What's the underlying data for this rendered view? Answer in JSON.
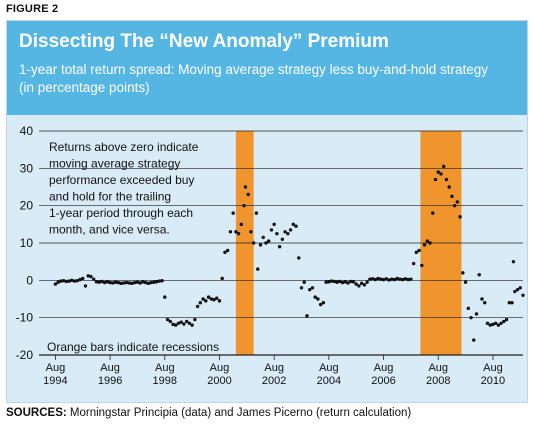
{
  "figure_label": "FIGURE 2",
  "sources_label": "SOURCES:",
  "sources_text": " Morningstar Principia (data) and James Picerno (return calculation)",
  "colors": {
    "header": "#55b6e4",
    "panel": "#d9ebf6",
    "recession": "#f0952e",
    "dot": "#111111"
  },
  "chart_data": {
    "type": "scatter",
    "title": "Dissecting The “New Anomaly” Premium",
    "subtitle_lines": [
      "1-year total return spread: Moving average strategy less buy-and-hold strategy",
      "(in percentage points)"
    ],
    "ylim": [
      -20,
      40
    ],
    "yticks": [
      40,
      30,
      20,
      10,
      0,
      -10,
      -20
    ],
    "xlim": [
      1994.0,
      2011.7
    ],
    "xticks": [
      {
        "x": 1994.6,
        "label": [
          "Aug",
          "1994"
        ]
      },
      {
        "x": 1996.6,
        "label": [
          "Aug",
          "1996"
        ]
      },
      {
        "x": 1998.6,
        "label": [
          "Aug",
          "1998"
        ]
      },
      {
        "x": 2000.6,
        "label": [
          "Aug",
          "2000"
        ]
      },
      {
        "x": 2002.6,
        "label": [
          "Aug",
          "2002"
        ]
      },
      {
        "x": 2004.6,
        "label": [
          "Aug",
          "2004"
        ]
      },
      {
        "x": 2006.6,
        "label": [
          "Aug",
          "2006"
        ]
      },
      {
        "x": 2008.6,
        "label": [
          "Aug",
          "2008"
        ]
      },
      {
        "x": 2010.6,
        "label": [
          "Aug",
          "2010"
        ]
      }
    ],
    "recessions": [
      {
        "start": 2001.2,
        "end": 2001.85
      },
      {
        "start": 2007.95,
        "end": 2009.45
      }
    ],
    "annotations": [
      {
        "lines": [
          "Returns above zero indicate",
          "moving average strategy",
          "performance exceeded buy",
          "and hold for the trailing",
          "1-year period through each",
          "month, and vice versa."
        ],
        "anchor": "upper-left"
      },
      {
        "lines": [
          "Orange bars indicate recessions"
        ],
        "anchor": "lower-left"
      }
    ],
    "series": [
      {
        "values": [
          [
            1994.6,
            -1.0
          ],
          [
            1994.7,
            -0.5
          ],
          [
            1994.8,
            -0.2
          ],
          [
            1994.9,
            -0.1
          ],
          [
            1995.0,
            -0.3
          ],
          [
            1995.1,
            -0.2
          ],
          [
            1995.2,
            0.0
          ],
          [
            1995.3,
            -0.2
          ],
          [
            1995.4,
            -0.1
          ],
          [
            1995.5,
            0.2
          ],
          [
            1995.6,
            0.5
          ],
          [
            1995.7,
            -1.5
          ],
          [
            1995.8,
            1.2
          ],
          [
            1995.9,
            1.0
          ],
          [
            1996.0,
            0.3
          ],
          [
            1996.1,
            -0.4
          ],
          [
            1996.2,
            -0.5
          ],
          [
            1996.3,
            -0.3
          ],
          [
            1996.4,
            -0.6
          ],
          [
            1996.5,
            -0.4
          ],
          [
            1996.6,
            -0.6
          ],
          [
            1996.7,
            -0.7
          ],
          [
            1996.8,
            -0.5
          ],
          [
            1996.9,
            -0.6
          ],
          [
            1997.0,
            -0.8
          ],
          [
            1997.1,
            -0.7
          ],
          [
            1997.2,
            -0.6
          ],
          [
            1997.3,
            -0.7
          ],
          [
            1997.4,
            -0.8
          ],
          [
            1997.5,
            -0.6
          ],
          [
            1997.6,
            -0.5
          ],
          [
            1997.7,
            -0.7
          ],
          [
            1997.8,
            -0.4
          ],
          [
            1997.9,
            -0.6
          ],
          [
            1998.0,
            -0.8
          ],
          [
            1998.1,
            -0.6
          ],
          [
            1998.2,
            -0.5
          ],
          [
            1998.3,
            -0.4
          ],
          [
            1998.4,
            -0.2
          ],
          [
            1998.5,
            -0.1
          ],
          [
            1998.6,
            -4.5
          ],
          [
            1998.7,
            -10.5
          ],
          [
            1998.8,
            -11.0
          ],
          [
            1998.9,
            -11.8
          ],
          [
            1999.0,
            -12.0
          ],
          [
            1999.1,
            -11.5
          ],
          [
            1999.2,
            -11.2
          ],
          [
            1999.3,
            -11.7
          ],
          [
            1999.4,
            -11.0
          ],
          [
            1999.5,
            -11.5
          ],
          [
            1999.6,
            -12.0
          ],
          [
            1999.7,
            -10.5
          ],
          [
            1999.8,
            -7.0
          ],
          [
            1999.9,
            -6.0
          ],
          [
            2000.0,
            -5.0
          ],
          [
            2000.1,
            -5.5
          ],
          [
            2000.2,
            -4.5
          ],
          [
            2000.3,
            -5.0
          ],
          [
            2000.4,
            -5.2
          ],
          [
            2000.5,
            -4.8
          ],
          [
            2000.6,
            -5.5
          ],
          [
            2000.7,
            0.5
          ],
          [
            2000.8,
            7.5
          ],
          [
            2000.9,
            8.0
          ],
          [
            2001.0,
            13.0
          ],
          [
            2001.1,
            18.0
          ],
          [
            2001.2,
            13.0
          ],
          [
            2001.3,
            12.5
          ],
          [
            2001.4,
            15.0
          ],
          [
            2001.5,
            20.0
          ],
          [
            2001.55,
            25.0
          ],
          [
            2001.65,
            23.0
          ],
          [
            2001.75,
            13.0
          ],
          [
            2001.85,
            10.0
          ],
          [
            2001.95,
            18.0
          ],
          [
            2002.0,
            3.0
          ],
          [
            2002.1,
            9.5
          ],
          [
            2002.2,
            11.5
          ],
          [
            2002.3,
            10.0
          ],
          [
            2002.4,
            10.5
          ],
          [
            2002.5,
            13.5
          ],
          [
            2002.6,
            15.0
          ],
          [
            2002.7,
            12.5
          ],
          [
            2002.8,
            9.0
          ],
          [
            2002.9,
            11.0
          ],
          [
            2003.0,
            13.0
          ],
          [
            2003.1,
            12.5
          ],
          [
            2003.2,
            13.5
          ],
          [
            2003.3,
            15.0
          ],
          [
            2003.4,
            14.5
          ],
          [
            2003.5,
            6.0
          ],
          [
            2003.6,
            -2.0
          ],
          [
            2003.7,
            -0.5
          ],
          [
            2003.8,
            -9.5
          ],
          [
            2003.9,
            -2.5
          ],
          [
            2004.0,
            -2.0
          ],
          [
            2004.1,
            -4.5
          ],
          [
            2004.2,
            -5.0
          ],
          [
            2004.3,
            -6.5
          ],
          [
            2004.4,
            -6.0
          ],
          [
            2004.5,
            -0.5
          ],
          [
            2004.6,
            -0.4
          ],
          [
            2004.7,
            -0.2
          ],
          [
            2004.8,
            -0.3
          ],
          [
            2004.9,
            -0.5
          ],
          [
            2005.0,
            -0.3
          ],
          [
            2005.1,
            -0.6
          ],
          [
            2005.2,
            -0.4
          ],
          [
            2005.3,
            -0.7
          ],
          [
            2005.4,
            -0.3
          ],
          [
            2005.5,
            -0.4
          ],
          [
            2005.6,
            -1.0
          ],
          [
            2005.7,
            -1.5
          ],
          [
            2005.8,
            -0.8
          ],
          [
            2005.9,
            -1.2
          ],
          [
            2006.0,
            -0.5
          ],
          [
            2006.1,
            0.3
          ],
          [
            2006.2,
            0.4
          ],
          [
            2006.3,
            0.2
          ],
          [
            2006.4,
            0.5
          ],
          [
            2006.5,
            0.3
          ],
          [
            2006.6,
            0.2
          ],
          [
            2006.7,
            0.4
          ],
          [
            2006.8,
            0.1
          ],
          [
            2006.9,
            0.3
          ],
          [
            2007.0,
            0.2
          ],
          [
            2007.1,
            0.5
          ],
          [
            2007.2,
            0.3
          ],
          [
            2007.3,
            0.2
          ],
          [
            2007.4,
            0.4
          ],
          [
            2007.5,
            0.2
          ],
          [
            2007.6,
            0.3
          ],
          [
            2007.7,
            4.5
          ],
          [
            2007.8,
            7.5
          ],
          [
            2007.9,
            8.0
          ],
          [
            2008.0,
            4.0
          ],
          [
            2008.1,
            9.5
          ],
          [
            2008.2,
            10.5
          ],
          [
            2008.3,
            10.0
          ],
          [
            2008.4,
            18.0
          ],
          [
            2008.5,
            27.0
          ],
          [
            2008.6,
            29.0
          ],
          [
            2008.7,
            28.5
          ],
          [
            2008.8,
            30.5
          ],
          [
            2008.9,
            27.0
          ],
          [
            2009.0,
            25.0
          ],
          [
            2009.1,
            22.5
          ],
          [
            2009.2,
            20.0
          ],
          [
            2009.3,
            21.0
          ],
          [
            2009.4,
            17.0
          ],
          [
            2009.5,
            2.0
          ],
          [
            2009.6,
            -0.5
          ],
          [
            2009.7,
            -7.5
          ],
          [
            2009.8,
            -10.0
          ],
          [
            2009.9,
            -16.0
          ],
          [
            2010.0,
            -9.0
          ],
          [
            2010.1,
            1.5
          ],
          [
            2010.2,
            -5.0
          ],
          [
            2010.3,
            -6.0
          ],
          [
            2010.4,
            -11.5
          ],
          [
            2010.5,
            -12.0
          ],
          [
            2010.6,
            -11.8
          ],
          [
            2010.7,
            -11.5
          ],
          [
            2010.8,
            -12.0
          ],
          [
            2010.9,
            -11.5
          ],
          [
            2011.0,
            -11.0
          ],
          [
            2011.1,
            -10.5
          ],
          [
            2011.2,
            -6.0
          ],
          [
            2011.3,
            -6.0
          ],
          [
            2011.35,
            5.0
          ],
          [
            2011.4,
            -3.0
          ],
          [
            2011.5,
            -2.5
          ],
          [
            2011.6,
            -2.0
          ],
          [
            2011.7,
            -4.0
          ]
        ]
      }
    ]
  }
}
